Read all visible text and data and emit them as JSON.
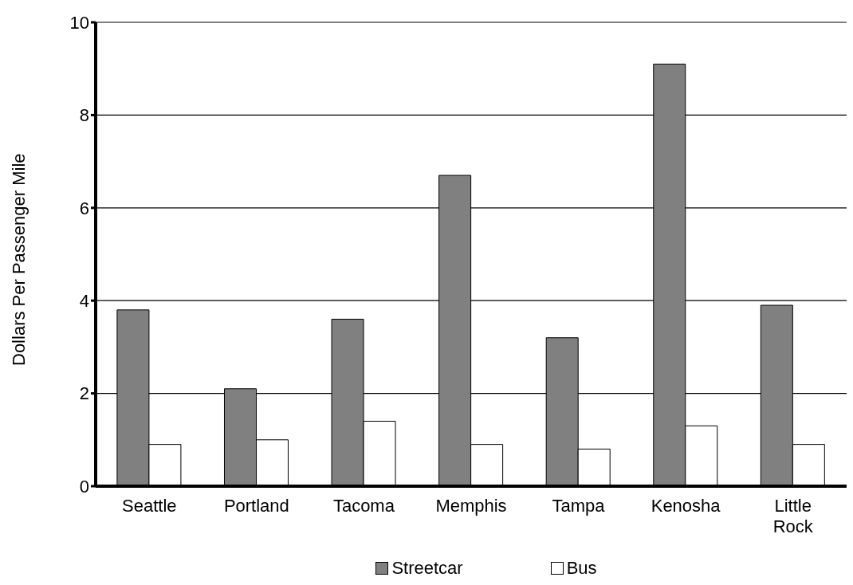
{
  "chart_data": {
    "type": "bar",
    "ylabel": "Dollars Per Passenger Mile",
    "categories": [
      "Seattle",
      "Portland",
      "Tacoma",
      "Memphis",
      "Tampa",
      "Kenosha",
      "Little Rock"
    ],
    "series": [
      {
        "name": "Streetcar",
        "color": "#808080",
        "values": [
          3.8,
          2.1,
          3.6,
          6.7,
          3.2,
          9.1,
          3.9
        ]
      },
      {
        "name": "Bus",
        "color": "#ffffff",
        "values": [
          0.9,
          1.0,
          1.4,
          0.9,
          0.8,
          1.3,
          0.9
        ]
      }
    ],
    "ylim": [
      0,
      10
    ],
    "yticks": [
      0,
      2,
      4,
      6,
      8,
      10
    ],
    "grid": "y",
    "legend": "bottom"
  }
}
